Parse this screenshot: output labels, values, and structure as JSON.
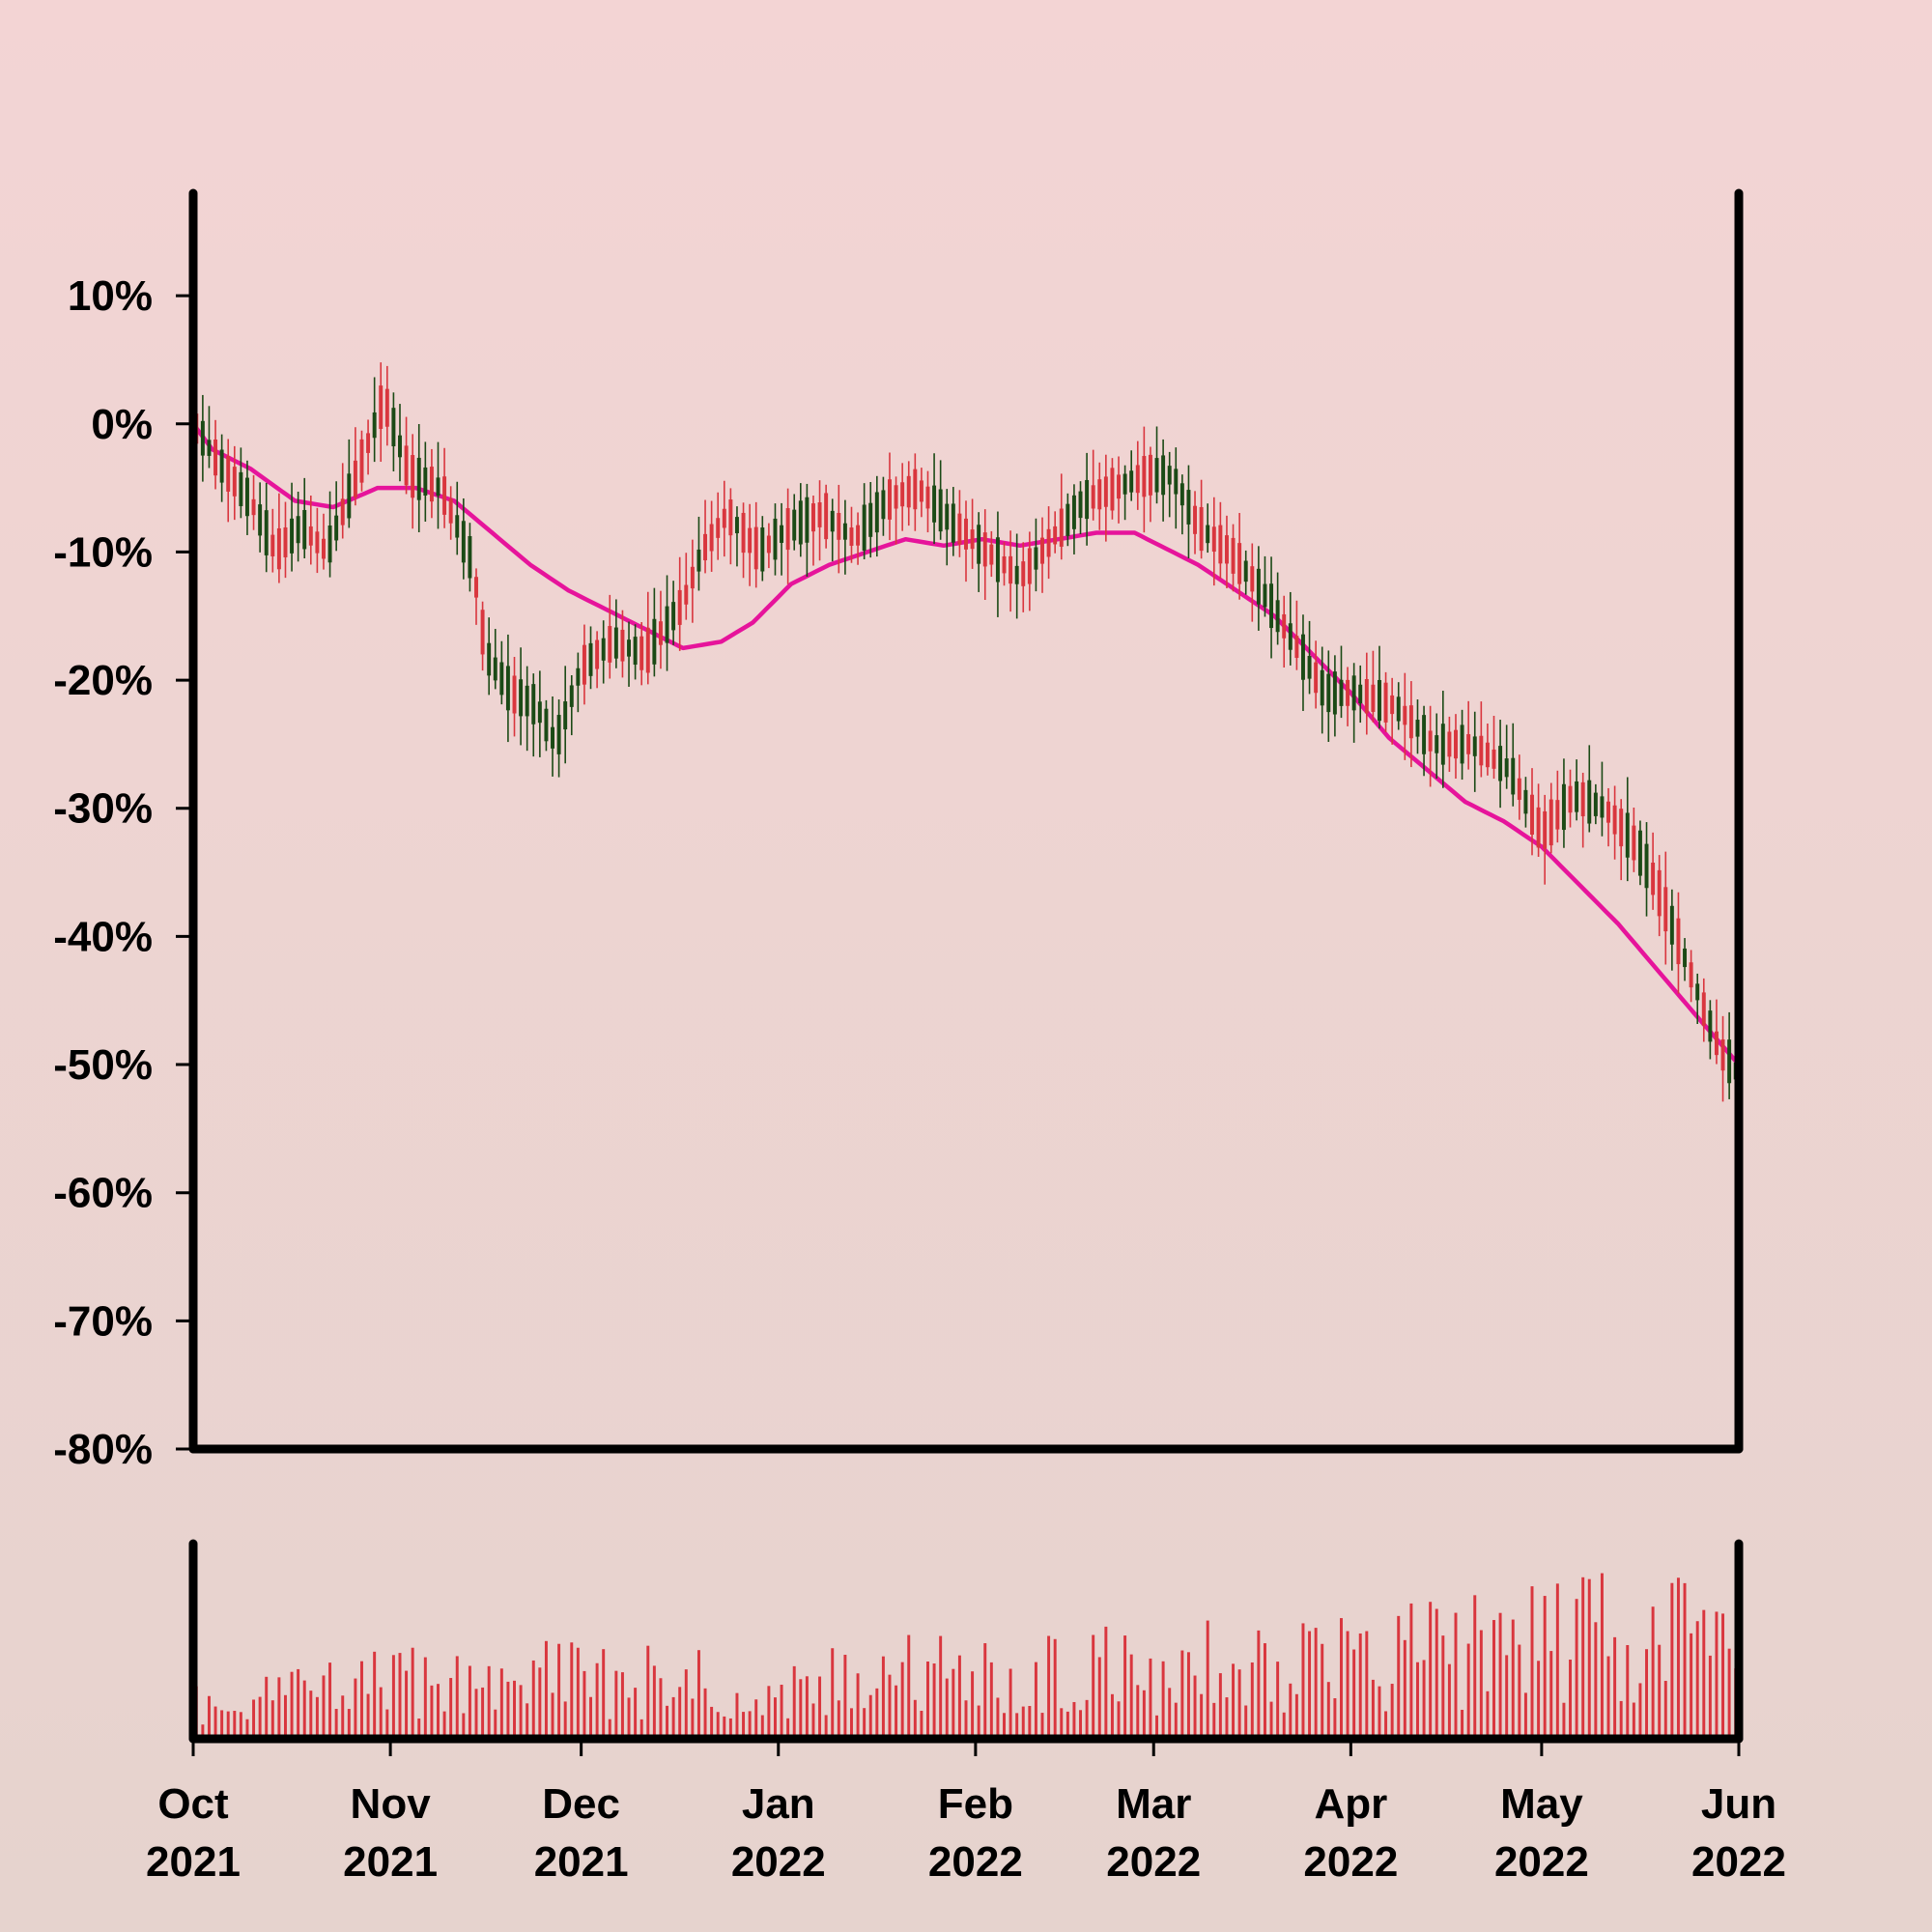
{
  "chart_data": {
    "type": "candlestick",
    "title": "",
    "xlabel": "",
    "ylabel": "",
    "ylim": [
      -80,
      18
    ],
    "y_unit": "%",
    "y_ticks": [
      10,
      0,
      -10,
      -20,
      -30,
      -40,
      -50,
      -60,
      -70,
      -80
    ],
    "y_tick_labels": [
      "10%",
      "0%",
      "-10%",
      "-20%",
      "-30%",
      "-40%",
      "-50%",
      "-60%",
      "-70%",
      "-80%"
    ],
    "x_ticks": [
      {
        "date": "2021-10-01",
        "month": "Oct",
        "year": "2021"
      },
      {
        "date": "2021-11-01",
        "month": "Nov",
        "year": "2021"
      },
      {
        "date": "2021-12-01",
        "month": "Dec",
        "year": "2021"
      },
      {
        "date": "2022-01-01",
        "month": "Jan",
        "year": "2022"
      },
      {
        "date": "2022-02-01",
        "month": "Feb",
        "year": "2022"
      },
      {
        "date": "2022-03-01",
        "month": "Mar",
        "year": "2022"
      },
      {
        "date": "2022-04-01",
        "month": "Apr",
        "year": "2022"
      },
      {
        "date": "2022-05-01",
        "month": "May",
        "year": "2022"
      },
      {
        "date": "2022-06-01",
        "month": "Jun",
        "year": "2022"
      }
    ],
    "xlim": [
      "2021-10-01",
      "2022-06-01"
    ],
    "price_series": {
      "interpolation": "linear",
      "points": [
        [
          "2021-10-01",
          0
        ],
        [
          "2021-10-05",
          -3
        ],
        [
          "2021-10-10",
          -6
        ],
        [
          "2021-10-14",
          -10
        ],
        [
          "2021-10-18",
          -8
        ],
        [
          "2021-10-22",
          -10
        ],
        [
          "2021-10-26",
          -5
        ],
        [
          "2021-10-31",
          2
        ],
        [
          "2021-11-04",
          -4
        ],
        [
          "2021-11-09",
          -5
        ],
        [
          "2021-11-14",
          -11
        ],
        [
          "2021-11-16",
          -18
        ],
        [
          "2021-11-20",
          -21
        ],
        [
          "2021-11-24",
          -22
        ],
        [
          "2021-11-27",
          -25
        ],
        [
          "2021-12-01",
          -19
        ],
        [
          "2021-12-06",
          -17
        ],
        [
          "2021-12-11",
          -18
        ],
        [
          "2021-12-17",
          -14
        ],
        [
          "2021-12-20",
          -10
        ],
        [
          "2021-12-24",
          -7
        ],
        [
          "2021-12-29",
          -10
        ],
        [
          "2022-01-03",
          -8
        ],
        [
          "2022-01-08",
          -7
        ],
        [
          "2022-01-13",
          -9
        ],
        [
          "2022-01-18",
          -6
        ],
        [
          "2022-01-23",
          -5
        ],
        [
          "2022-01-29",
          -8
        ],
        [
          "2022-02-03",
          -10
        ],
        [
          "2022-02-08",
          -12
        ],
        [
          "2022-02-13",
          -9
        ],
        [
          "2022-02-18",
          -6
        ],
        [
          "2022-02-23",
          -5
        ],
        [
          "2022-02-28",
          -4
        ],
        [
          "2022-03-04",
          -4
        ],
        [
          "2022-03-08",
          -8
        ],
        [
          "2022-03-13",
          -10
        ],
        [
          "2022-03-18",
          -13
        ],
        [
          "2022-03-23",
          -17
        ],
        [
          "2022-03-28",
          -21
        ],
        [
          "2022-04-02",
          -21
        ],
        [
          "2022-04-08",
          -22
        ],
        [
          "2022-04-14",
          -25
        ],
        [
          "2022-04-20",
          -25
        ],
        [
          "2022-04-26",
          -27
        ],
        [
          "2022-05-01",
          -32
        ],
        [
          "2022-05-06",
          -29
        ],
        [
          "2022-05-11",
          -30
        ],
        [
          "2022-05-16",
          -33
        ],
        [
          "2022-05-19",
          -36
        ],
        [
          "2022-05-23",
          -41
        ],
        [
          "2022-05-26",
          -45
        ],
        [
          "2022-05-29",
          -49
        ],
        [
          "2022-05-31",
          -50
        ],
        [
          "2022-06-01",
          -51
        ]
      ],
      "up_color": "#d9363e",
      "down_color": "#1b4a16"
    },
    "candles": {
      "amplitude_range": [
        1.2,
        3.6
      ],
      "wick_range": [
        0.6,
        2.8
      ]
    },
    "moving_average": {
      "color": "#e6149b",
      "points": [
        [
          "2021-10-01",
          0
        ],
        [
          "2021-10-04",
          -2
        ],
        [
          "2021-10-10",
          -3.5
        ],
        [
          "2021-10-17",
          -6
        ],
        [
          "2021-10-23",
          -6.5
        ],
        [
          "2021-10-30",
          -5
        ],
        [
          "2021-11-05",
          -5
        ],
        [
          "2021-11-11",
          -6
        ],
        [
          "2021-11-17",
          -8.5
        ],
        [
          "2021-11-23",
          -11
        ],
        [
          "2021-11-29",
          -13
        ],
        [
          "2021-12-05",
          -14.5
        ],
        [
          "2021-12-11",
          -16
        ],
        [
          "2021-12-17",
          -17.5
        ],
        [
          "2021-12-23",
          -17
        ],
        [
          "2021-12-28",
          -15.5
        ],
        [
          "2022-01-03",
          -12.5
        ],
        [
          "2022-01-09",
          -11
        ],
        [
          "2022-01-15",
          -10
        ],
        [
          "2022-01-21",
          -9
        ],
        [
          "2022-01-27",
          -9.5
        ],
        [
          "2022-02-02",
          -9
        ],
        [
          "2022-02-08",
          -9.5
        ],
        [
          "2022-02-14",
          -9
        ],
        [
          "2022-02-20",
          -8.5
        ],
        [
          "2022-02-26",
          -8.5
        ],
        [
          "2022-03-02",
          -9.5
        ],
        [
          "2022-03-08",
          -11
        ],
        [
          "2022-03-14",
          -13
        ],
        [
          "2022-03-20",
          -15
        ],
        [
          "2022-03-26",
          -18
        ],
        [
          "2022-04-01",
          -21
        ],
        [
          "2022-04-07",
          -24.5
        ],
        [
          "2022-04-13",
          -27
        ],
        [
          "2022-04-19",
          -29.5
        ],
        [
          "2022-04-25",
          -31
        ],
        [
          "2022-05-01",
          -33
        ],
        [
          "2022-05-07",
          -36
        ],
        [
          "2022-05-13",
          -39
        ],
        [
          "2022-05-19",
          -42.5
        ],
        [
          "2022-05-25",
          -46
        ],
        [
          "2022-06-01",
          -50
        ]
      ]
    },
    "volume": {
      "color": "#d9363e",
      "ylim": [
        0,
        1
      ],
      "trend": [
        [
          "2021-10-01",
          0.25
        ],
        [
          "2021-11-01",
          0.35
        ],
        [
          "2021-12-01",
          0.38
        ],
        [
          "2022-01-01",
          0.35
        ],
        [
          "2022-02-01",
          0.42
        ],
        [
          "2022-03-01",
          0.45
        ],
        [
          "2022-04-01",
          0.5
        ],
        [
          "2022-05-01",
          0.65
        ],
        [
          "2022-06-01",
          0.6
        ]
      ]
    }
  }
}
